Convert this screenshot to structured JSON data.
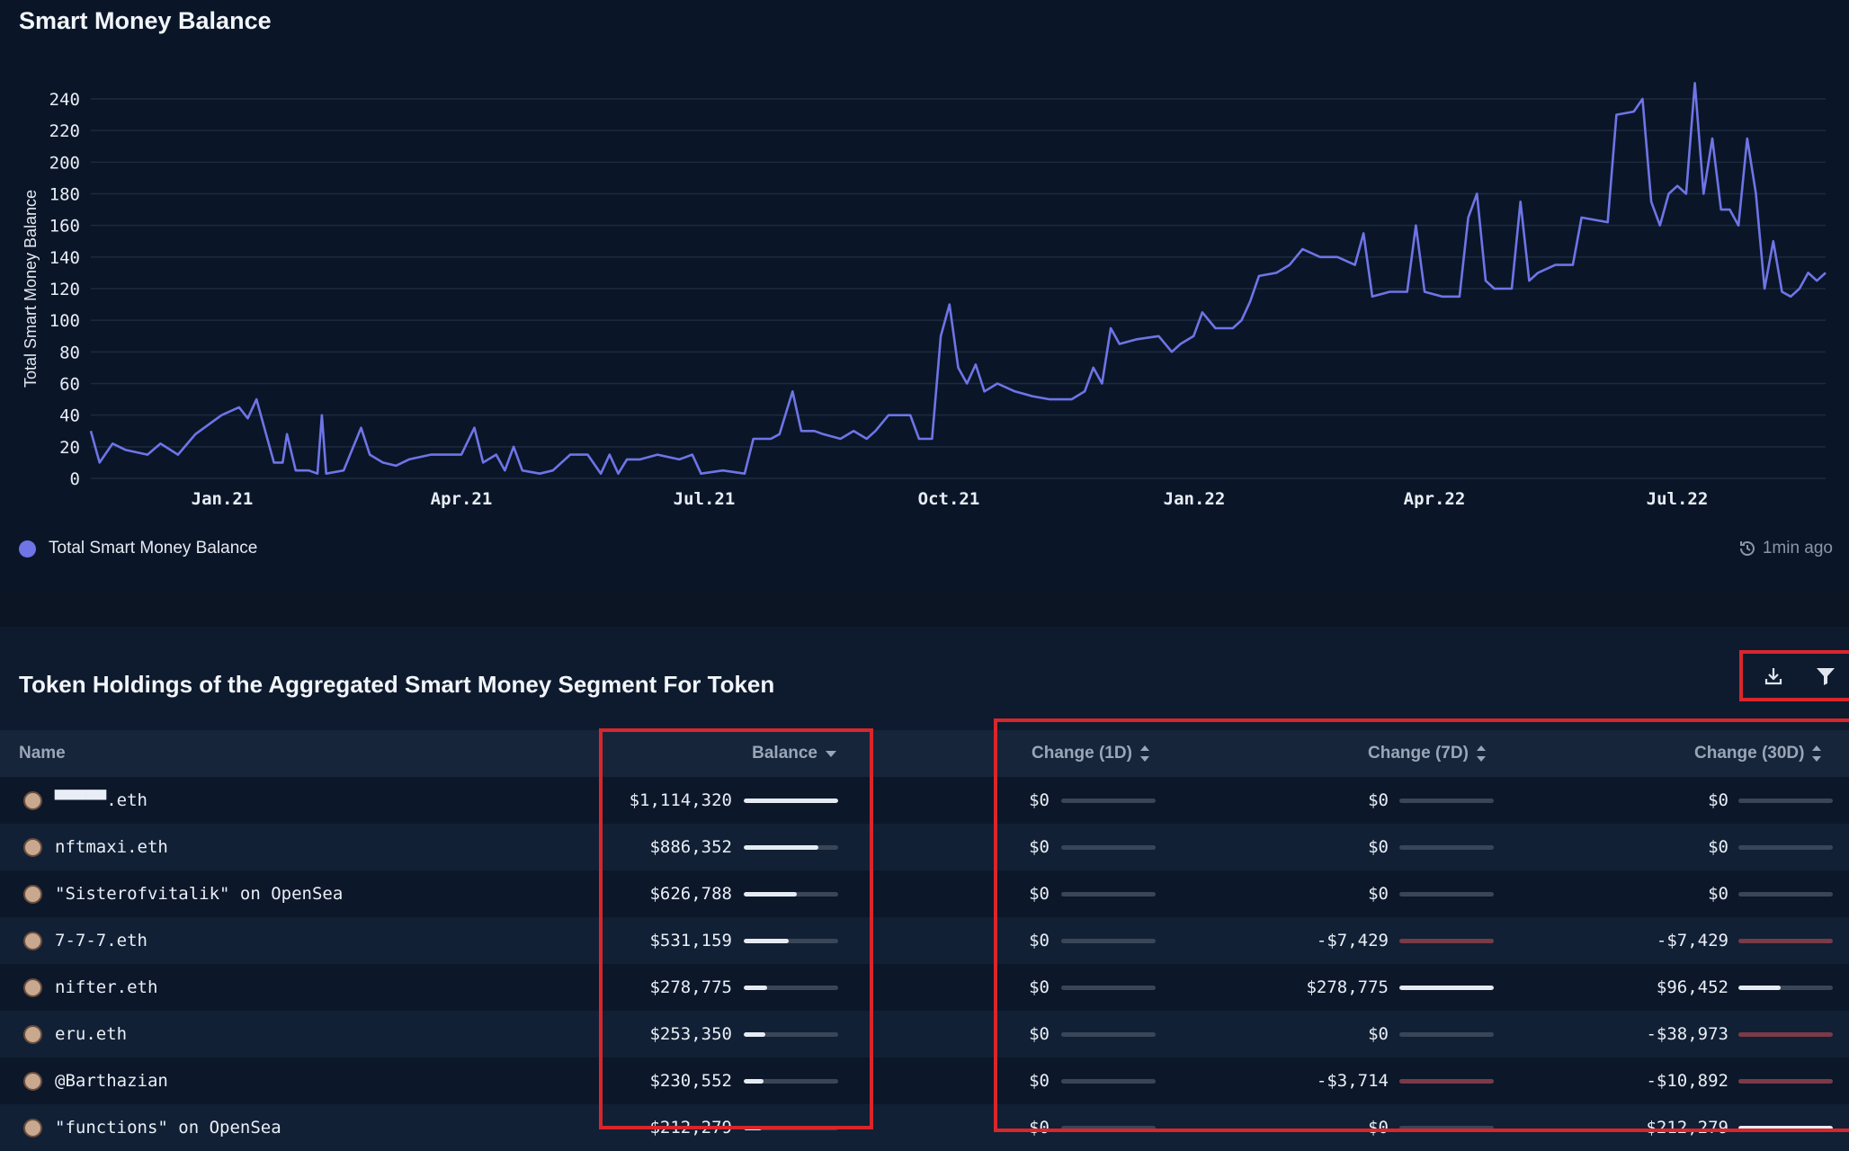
{
  "chart_title": "Smart Money Balance",
  "chart_data": {
    "type": "line",
    "title": "Smart Money Balance",
    "ylabel": "Total Smart Money Balance",
    "xlabel": "",
    "ylim": [
      0,
      240
    ],
    "yticks": [
      "0",
      "20",
      "40",
      "60",
      "80",
      "100",
      "120",
      "140",
      "160",
      "180",
      "200",
      "220",
      "240"
    ],
    "xticks": [
      "Jan.21",
      "Apr.21",
      "Jul.21",
      "Oct.21",
      "Jan.22",
      "Apr.22",
      "Jul.22"
    ],
    "grid": true,
    "color": "#6f74e6",
    "series": [
      {
        "name": "Total Smart Money Balance",
        "points": [
          [
            0,
            30
          ],
          [
            2,
            10
          ],
          [
            5,
            22
          ],
          [
            8,
            18
          ],
          [
            13,
            15
          ],
          [
            16,
            22
          ],
          [
            20,
            15
          ],
          [
            24,
            28
          ],
          [
            30,
            40
          ],
          [
            34,
            45
          ],
          [
            36,
            38
          ],
          [
            38,
            50
          ],
          [
            40,
            30
          ],
          [
            42,
            10
          ],
          [
            44,
            10
          ],
          [
            45,
            28
          ],
          [
            47,
            5
          ],
          [
            50,
            5
          ],
          [
            52,
            3
          ],
          [
            53,
            40
          ],
          [
            54,
            3
          ],
          [
            58,
            5
          ],
          [
            62,
            32
          ],
          [
            64,
            15
          ],
          [
            67,
            10
          ],
          [
            70,
            8
          ],
          [
            73,
            12
          ],
          [
            78,
            15
          ],
          [
            85,
            15
          ],
          [
            88,
            32
          ],
          [
            90,
            10
          ],
          [
            93,
            15
          ],
          [
            95,
            5
          ],
          [
            97,
            20
          ],
          [
            99,
            5
          ],
          [
            103,
            3
          ],
          [
            106,
            5
          ],
          [
            110,
            15
          ],
          [
            114,
            15
          ],
          [
            117,
            3
          ],
          [
            119,
            15
          ],
          [
            121,
            3
          ],
          [
            123,
            12
          ],
          [
            126,
            12
          ],
          [
            130,
            15
          ],
          [
            135,
            12
          ],
          [
            138,
            15
          ],
          [
            140,
            3
          ],
          [
            145,
            5
          ],
          [
            150,
            3
          ],
          [
            152,
            25
          ],
          [
            156,
            25
          ],
          [
            158,
            28
          ],
          [
            161,
            55
          ],
          [
            163,
            30
          ],
          [
            166,
            30
          ],
          [
            168,
            28
          ],
          [
            172,
            25
          ],
          [
            175,
            30
          ],
          [
            178,
            25
          ],
          [
            180,
            30
          ],
          [
            183,
            40
          ],
          [
            188,
            40
          ],
          [
            190,
            25
          ],
          [
            193,
            25
          ],
          [
            195,
            90
          ],
          [
            197,
            110
          ],
          [
            199,
            70
          ],
          [
            201,
            60
          ],
          [
            203,
            72
          ],
          [
            205,
            55
          ],
          [
            208,
            60
          ],
          [
            212,
            55
          ],
          [
            216,
            52
          ],
          [
            220,
            50
          ],
          [
            225,
            50
          ],
          [
            228,
            55
          ],
          [
            230,
            70
          ],
          [
            232,
            60
          ],
          [
            234,
            95
          ],
          [
            236,
            85
          ],
          [
            240,
            88
          ],
          [
            245,
            90
          ],
          [
            248,
            80
          ],
          [
            250,
            85
          ],
          [
            253,
            90
          ],
          [
            255,
            105
          ],
          [
            258,
            95
          ],
          [
            262,
            95
          ],
          [
            264,
            100
          ],
          [
            266,
            112
          ],
          [
            268,
            128
          ],
          [
            272,
            130
          ],
          [
            275,
            135
          ],
          [
            278,
            145
          ],
          [
            282,
            140
          ],
          [
            286,
            140
          ],
          [
            290,
            135
          ],
          [
            292,
            155
          ],
          [
            294,
            115
          ],
          [
            298,
            118
          ],
          [
            302,
            118
          ],
          [
            304,
            160
          ],
          [
            306,
            118
          ],
          [
            310,
            115
          ],
          [
            314,
            115
          ],
          [
            316,
            165
          ],
          [
            318,
            180
          ],
          [
            320,
            125
          ],
          [
            322,
            120
          ],
          [
            326,
            120
          ],
          [
            328,
            175
          ],
          [
            330,
            125
          ],
          [
            332,
            130
          ],
          [
            336,
            135
          ],
          [
            340,
            135
          ],
          [
            342,
            165
          ],
          [
            348,
            162
          ],
          [
            350,
            230
          ],
          [
            354,
            232
          ],
          [
            356,
            240
          ],
          [
            358,
            175
          ],
          [
            360,
            160
          ],
          [
            362,
            180
          ],
          [
            364,
            185
          ],
          [
            366,
            180
          ],
          [
            368,
            250
          ],
          [
            370,
            180
          ],
          [
            372,
            215
          ],
          [
            374,
            170
          ],
          [
            376,
            170
          ],
          [
            378,
            160
          ],
          [
            380,
            215
          ],
          [
            382,
            180
          ],
          [
            384,
            120
          ],
          [
            386,
            150
          ],
          [
            388,
            118
          ],
          [
            390,
            115
          ],
          [
            392,
            120
          ],
          [
            394,
            130
          ],
          [
            396,
            125
          ],
          [
            398,
            130
          ]
        ]
      }
    ]
  },
  "chart_legend": "Total Smart Money Balance",
  "last_updated": "1min ago",
  "table": {
    "title": "Token Holdings of the Aggregated Smart Money Segment For Token",
    "headers": {
      "name": "Name",
      "balance": "Balance",
      "change_1d": "Change (1D)",
      "change_7d": "Change (7D)",
      "change_30d": "Change (30D)"
    },
    "rows": [
      {
        "name": "▀▀▀▀▀.eth",
        "balance": "$1,114,320",
        "bal_pct": 1.0,
        "c1d": "$0",
        "c1d_pct": 0,
        "c7d": "$0",
        "c7d_pct": 0,
        "c7d_neg": false,
        "c30d": "$0",
        "c30d_pct": 0,
        "c30d_neg": false
      },
      {
        "name": "nftmaxi.eth",
        "balance": "$886,352",
        "bal_pct": 0.79,
        "c1d": "$0",
        "c1d_pct": 0,
        "c7d": "$0",
        "c7d_pct": 0,
        "c7d_neg": false,
        "c30d": "$0",
        "c30d_pct": 0,
        "c30d_neg": false
      },
      {
        "name": "\"Sisterofvitalik\" on OpenSea",
        "balance": "$626,788",
        "bal_pct": 0.56,
        "c1d": "$0",
        "c1d_pct": 0,
        "c7d": "$0",
        "c7d_pct": 0,
        "c7d_neg": false,
        "c30d": "$0",
        "c30d_pct": 0,
        "c30d_neg": false
      },
      {
        "name": "7-7-7.eth",
        "balance": "$531,159",
        "bal_pct": 0.48,
        "c1d": "$0",
        "c1d_pct": 0,
        "c7d": "-$7,429",
        "c7d_pct": 1.0,
        "c7d_neg": true,
        "c30d": "-$7,429",
        "c30d_pct": 1.0,
        "c30d_neg": true
      },
      {
        "name": "nifter.eth",
        "balance": "$278,775",
        "bal_pct": 0.25,
        "c1d": "$0",
        "c1d_pct": 0,
        "c7d": "$278,775",
        "c7d_pct": 1.0,
        "c7d_neg": false,
        "c30d": "$96,452",
        "c30d_pct": 0.45,
        "c30d_neg": false
      },
      {
        "name": "eru.eth",
        "balance": "$253,350",
        "bal_pct": 0.23,
        "c1d": "$0",
        "c1d_pct": 0,
        "c7d": "$0",
        "c7d_pct": 0,
        "c7d_neg": false,
        "c30d": "-$38,973",
        "c30d_pct": 1.0,
        "c30d_neg": true
      },
      {
        "name": "@Barthazian",
        "balance": "$230,552",
        "bal_pct": 0.21,
        "c1d": "$0",
        "c1d_pct": 0,
        "c7d": "-$3,714",
        "c7d_pct": 1.0,
        "c7d_neg": true,
        "c30d": "-$10,892",
        "c30d_pct": 1.0,
        "c30d_neg": true
      },
      {
        "name": "\"functions\" on OpenSea",
        "balance": "$212,279",
        "bal_pct": 0.19,
        "c1d": "$0",
        "c1d_pct": 0,
        "c7d": "$0",
        "c7d_pct": 0,
        "c7d_neg": false,
        "c30d": "$212,279",
        "c30d_pct": 1.0,
        "c30d_neg": false
      }
    ]
  },
  "icons": {
    "download": "download-icon",
    "filter": "filter-icon",
    "refresh": "clock-refresh-icon",
    "sort_desc": "caret-down-icon",
    "sort_both": "sort-arrows-icon",
    "avatar": "ape-avatar-icon"
  }
}
